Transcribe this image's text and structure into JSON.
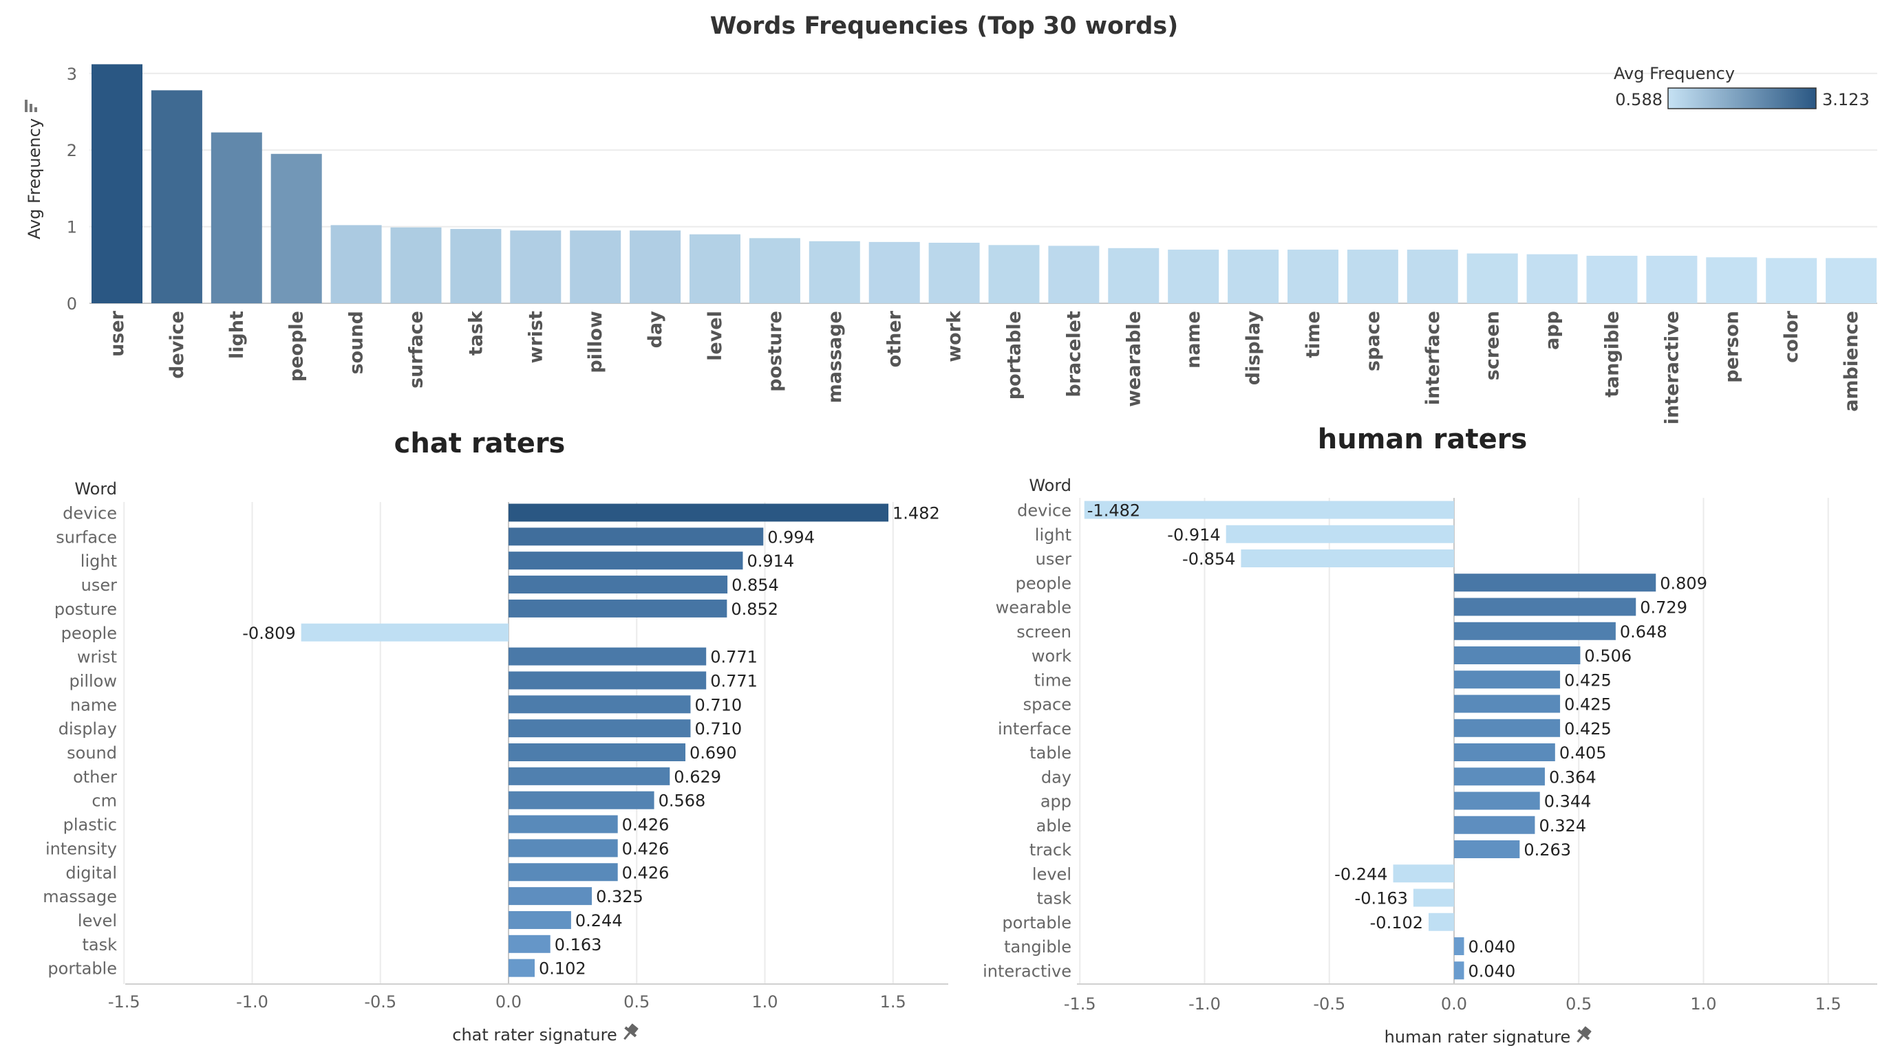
{
  "title": "Words Frequencies (Top 30 words)",
  "legend": {
    "title": "Avg Frequency",
    "min_label": "0.588",
    "max_label": "3.123",
    "color_low": "#c6e2f4",
    "color_high": "#2a5783"
  },
  "colors": {
    "pos_light": "#6c9ed0",
    "pos_dark": "#2a5783",
    "neg": "#bfdff3"
  },
  "chart_data": [
    {
      "type": "bar",
      "title": "Words Frequencies (Top 30 words)",
      "ylabel": "Avg Frequency",
      "ylim": [
        0,
        3.2
      ],
      "yticks": [
        "0",
        "1",
        "2",
        "3"
      ],
      "categories": [
        "user",
        "device",
        "light",
        "people",
        "sound",
        "surface",
        "task",
        "wrist",
        "pillow",
        "day",
        "level",
        "posture",
        "massage",
        "other",
        "work",
        "portable",
        "bracelet",
        "wearable",
        "name",
        "display",
        "time",
        "space",
        "interface",
        "screen",
        "app",
        "tangible",
        "interactive",
        "person",
        "color",
        "ambience"
      ],
      "values": [
        3.12,
        2.78,
        2.23,
        1.95,
        1.02,
        0.99,
        0.97,
        0.95,
        0.95,
        0.95,
        0.9,
        0.85,
        0.81,
        0.8,
        0.79,
        0.76,
        0.75,
        0.72,
        0.7,
        0.7,
        0.7,
        0.7,
        0.7,
        0.65,
        0.64,
        0.62,
        0.62,
        0.6,
        0.59,
        0.59
      ],
      "grid": true,
      "legend_position": "top-right"
    },
    {
      "type": "bar",
      "title": "chat raters",
      "row_header": "Word",
      "xlabel": "chat rater signature",
      "xlim": [
        -1.5,
        1.5
      ],
      "xticks": [
        "-1.5",
        "-1.0",
        "-0.5",
        "0.0",
        "0.5",
        "1.0",
        "1.5"
      ],
      "categories": [
        "device",
        "surface",
        "light",
        "user",
        "posture",
        "people",
        "wrist",
        "pillow",
        "name",
        "display",
        "sound",
        "other",
        "cm",
        "plastic",
        "intensity",
        "digital",
        "massage",
        "level",
        "task",
        "portable"
      ],
      "values": [
        1.482,
        0.994,
        0.914,
        0.854,
        0.852,
        -0.809,
        0.771,
        0.771,
        0.71,
        0.71,
        0.69,
        0.629,
        0.568,
        0.426,
        0.426,
        0.426,
        0.325,
        0.244,
        0.163,
        0.102
      ],
      "labels": [
        "1.482",
        "0.994",
        "0.914",
        "0.854",
        "0.852",
        "-0.809",
        "0.771",
        "0.771",
        "0.710",
        "0.710",
        "0.690",
        "0.629",
        "0.568",
        "0.426",
        "0.426",
        "0.426",
        "0.325",
        "0.244",
        "0.163",
        "0.102"
      ],
      "grid": true
    },
    {
      "type": "bar",
      "title": "human raters",
      "row_header": "Word",
      "xlabel": "human rater signature",
      "xlim": [
        -1.5,
        1.5
      ],
      "xticks": [
        "-1.5",
        "-1.0",
        "-0.5",
        "0.0",
        "0.5",
        "1.0",
        "1.5"
      ],
      "categories": [
        "device",
        "light",
        "user",
        "people",
        "wearable",
        "screen",
        "work",
        "time",
        "space",
        "interface",
        "table",
        "day",
        "app",
        "able",
        "track",
        "level",
        "task",
        "portable",
        "tangible",
        "interactive"
      ],
      "values": [
        -1.482,
        -0.914,
        -0.854,
        0.809,
        0.729,
        0.648,
        0.506,
        0.425,
        0.425,
        0.425,
        0.405,
        0.364,
        0.344,
        0.324,
        0.263,
        -0.244,
        -0.163,
        -0.102,
        0.04,
        0.04
      ],
      "labels": [
        "-1.482",
        "-0.914",
        "-0.854",
        "0.809",
        "0.729",
        "0.648",
        "0.506",
        "0.425",
        "0.425",
        "0.425",
        "0.405",
        "0.364",
        "0.344",
        "0.324",
        "0.263",
        "-0.244",
        "-0.163",
        "-0.102",
        "0.040",
        "0.040"
      ],
      "grid": true
    }
  ]
}
